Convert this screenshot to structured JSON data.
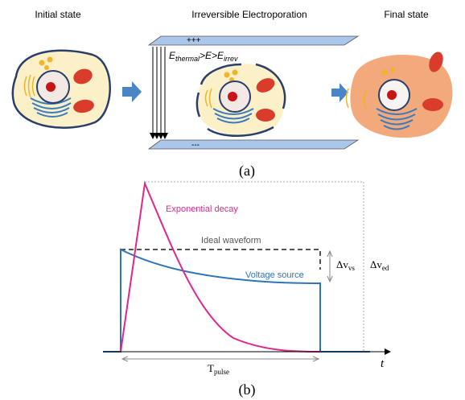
{
  "panel_a": {
    "titles": [
      "Initial state",
      "Irreversible Electroporation",
      "Final state"
    ],
    "top_plate": "+++",
    "bottom_plate": "---",
    "field_label": [
      "E",
      "thermal",
      ">E>E",
      "irrev"
    ],
    "caption": "(a)"
  },
  "panel_b": {
    "exponential": "Exponential decay",
    "ideal": "Ideal waveform",
    "voltage_source": "Voltage source",
    "delta_vs": [
      "Δv",
      "vs"
    ],
    "delta_ed": [
      "Δv",
      "ed"
    ],
    "pulse": [
      "T",
      "pulse"
    ],
    "time_axis": "t",
    "caption": "(b)"
  }
}
